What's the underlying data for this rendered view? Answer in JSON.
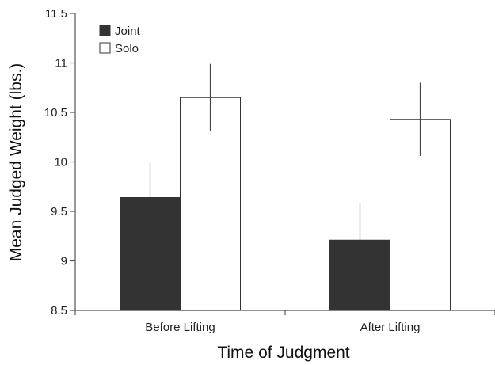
{
  "chart_data": {
    "type": "bar",
    "title": "",
    "xlabel": "Time of Judgment",
    "ylabel": "Mean Judged Weight (lbs.)",
    "ylim": [
      8.5,
      11.5
    ],
    "yticks": [
      8.5,
      9,
      9.5,
      10,
      10.5,
      11,
      11.5
    ],
    "ytick_labels": [
      "8.5",
      "9",
      "9.5",
      "10",
      "10.5",
      "11",
      "11.5"
    ],
    "categories": [
      "Before Lifting",
      "After Lifting"
    ],
    "legend_position": "top-left",
    "grid": false,
    "series": [
      {
        "name": "Joint",
        "color": "#333333",
        "values": [
          9.64,
          9.21
        ],
        "error": [
          0.35,
          0.37
        ]
      },
      {
        "name": "Solo",
        "color": "#ffffff",
        "values": [
          10.65,
          10.43
        ],
        "error": [
          0.34,
          0.37
        ]
      }
    ]
  }
}
